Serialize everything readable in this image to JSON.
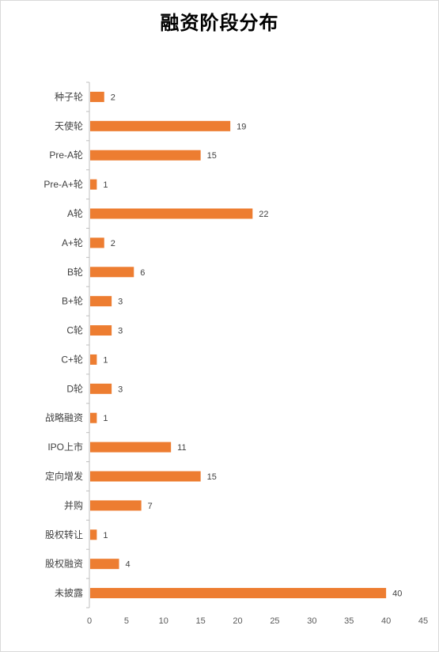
{
  "chart_data": {
    "type": "bar",
    "orientation": "horizontal",
    "title": "融资阶段分布",
    "categories": [
      "种子轮",
      "天使轮",
      "Pre-A轮",
      "Pre-A+轮",
      "A轮",
      "A+轮",
      "B轮",
      "B+轮",
      "C轮",
      "C+轮",
      "D轮",
      "战略融资",
      "IPO上市",
      "定向增发",
      "并购",
      "股权转让",
      "股权融资",
      "未披露"
    ],
    "values": [
      2,
      19,
      15,
      1,
      22,
      2,
      6,
      3,
      3,
      1,
      3,
      1,
      11,
      15,
      7,
      1,
      4,
      40
    ],
    "xlim": [
      0,
      45
    ],
    "xticks": [
      0,
      5,
      10,
      15,
      20,
      25,
      30,
      35,
      40,
      45
    ],
    "data_labels": true,
    "grid": false,
    "colors": {
      "bar": "#ED7D31",
      "axis": "#bfbfbf"
    }
  }
}
